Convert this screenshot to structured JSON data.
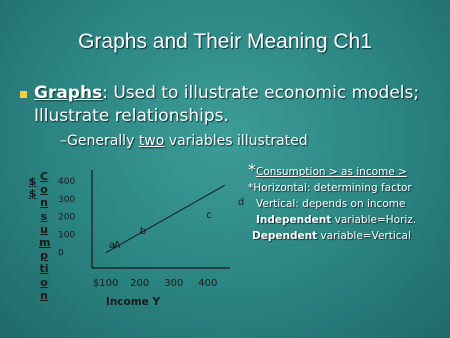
{
  "slide": {
    "title": "Graphs and Their Meaning Ch1",
    "bullet": {
      "term": "Graphs",
      "text": ": Used to illustrate economic models; Illustrate relationships."
    },
    "sub_bullet": {
      "dash": "–",
      "before": "Generally ",
      "emphasis": "two",
      "after": " variables illustrated"
    },
    "notes": [
      {
        "mark": "*",
        "text": "Consumption > as income >"
      },
      {
        "text": "*Horizontal: determining factor"
      },
      {
        "text": "Vertical: depends on income"
      },
      {
        "bold": "Independent",
        "text": " variable=Horiz."
      },
      {
        "bold": "Dependent",
        "text": " variable=Vertical"
      }
    ]
  },
  "chart_data": {
    "type": "line",
    "y_label": "Consumption",
    "y_unit": "$ $",
    "x_label": "Income  Y",
    "x": [
      100,
      450
    ],
    "series": [
      {
        "values": [
          0,
          380
        ],
        "color": "#1a1a1a"
      }
    ],
    "point_labels": [
      "a",
      "A",
      "b",
      "c",
      "d"
    ],
    "xlim": [
      60,
      465
    ],
    "ylim": [
      -85,
      465
    ],
    "xticks": [
      {
        "value": 100,
        "label": "$100"
      },
      200,
      300,
      400
    ],
    "yticks": [
      400,
      300,
      200,
      100,
      0
    ]
  }
}
